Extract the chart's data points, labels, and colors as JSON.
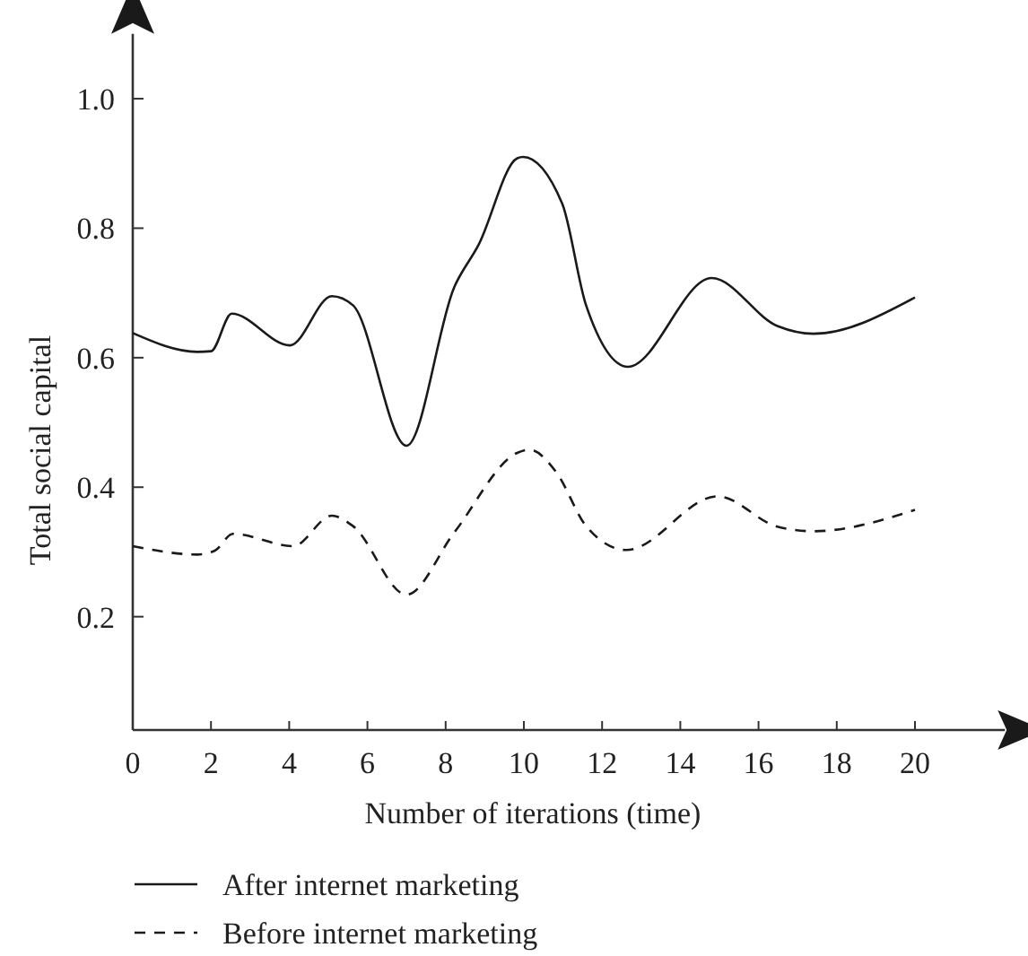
{
  "chart_data": {
    "type": "line",
    "xlabel": "Number of iterations (time)",
    "ylabel": "Total social capital",
    "xlim": [
      0,
      22.3
    ],
    "ylim": [
      0.025,
      1.1
    ],
    "xticks": [
      0,
      2,
      4,
      6,
      8,
      10,
      12,
      14,
      16,
      18,
      20
    ],
    "yticks": [
      0.2,
      0.4,
      0.6,
      0.8,
      {
        "value": 1,
        "label": "1.0"
      }
    ],
    "legend": "bottom",
    "grid": false,
    "marker": "none",
    "series": [
      {
        "name": "After internet marketing",
        "color": "#1a1a1a",
        "line_style": "solid",
        "x": [
          0,
          1.65,
          2.0,
          2.53,
          4.02,
          5.09,
          5.63,
          7.0,
          8.22,
          8.84,
          9.83,
          9.98,
          10.98,
          11.59,
          12.66,
          14.8,
          16.48,
          17.4,
          20
        ],
        "values": [
          0.638,
          0.609,
          0.61,
          0.668,
          0.619,
          0.695,
          0.681,
          0.464,
          0.709,
          0.774,
          0.908,
          0.91,
          0.838,
          0.681,
          0.586,
          0.723,
          0.649,
          0.637,
          0.693
        ]
      },
      {
        "name": "Before internet marketing",
        "color": "#1a1a1a",
        "line_style": "dashed",
        "x": [
          0,
          1.65,
          2.1,
          2.56,
          4.1,
          5.09,
          5.63,
          7.0,
          8.22,
          9.83,
          10.14,
          10.83,
          11.59,
          12.62,
          14.95,
          16.48,
          17.4,
          20
        ],
        "values": [
          0.309,
          0.296,
          0.302,
          0.328,
          0.309,
          0.356,
          0.34,
          0.234,
          0.33,
          0.453,
          0.458,
          0.423,
          0.34,
          0.303,
          0.386,
          0.339,
          0.332,
          0.365
        ]
      }
    ]
  }
}
